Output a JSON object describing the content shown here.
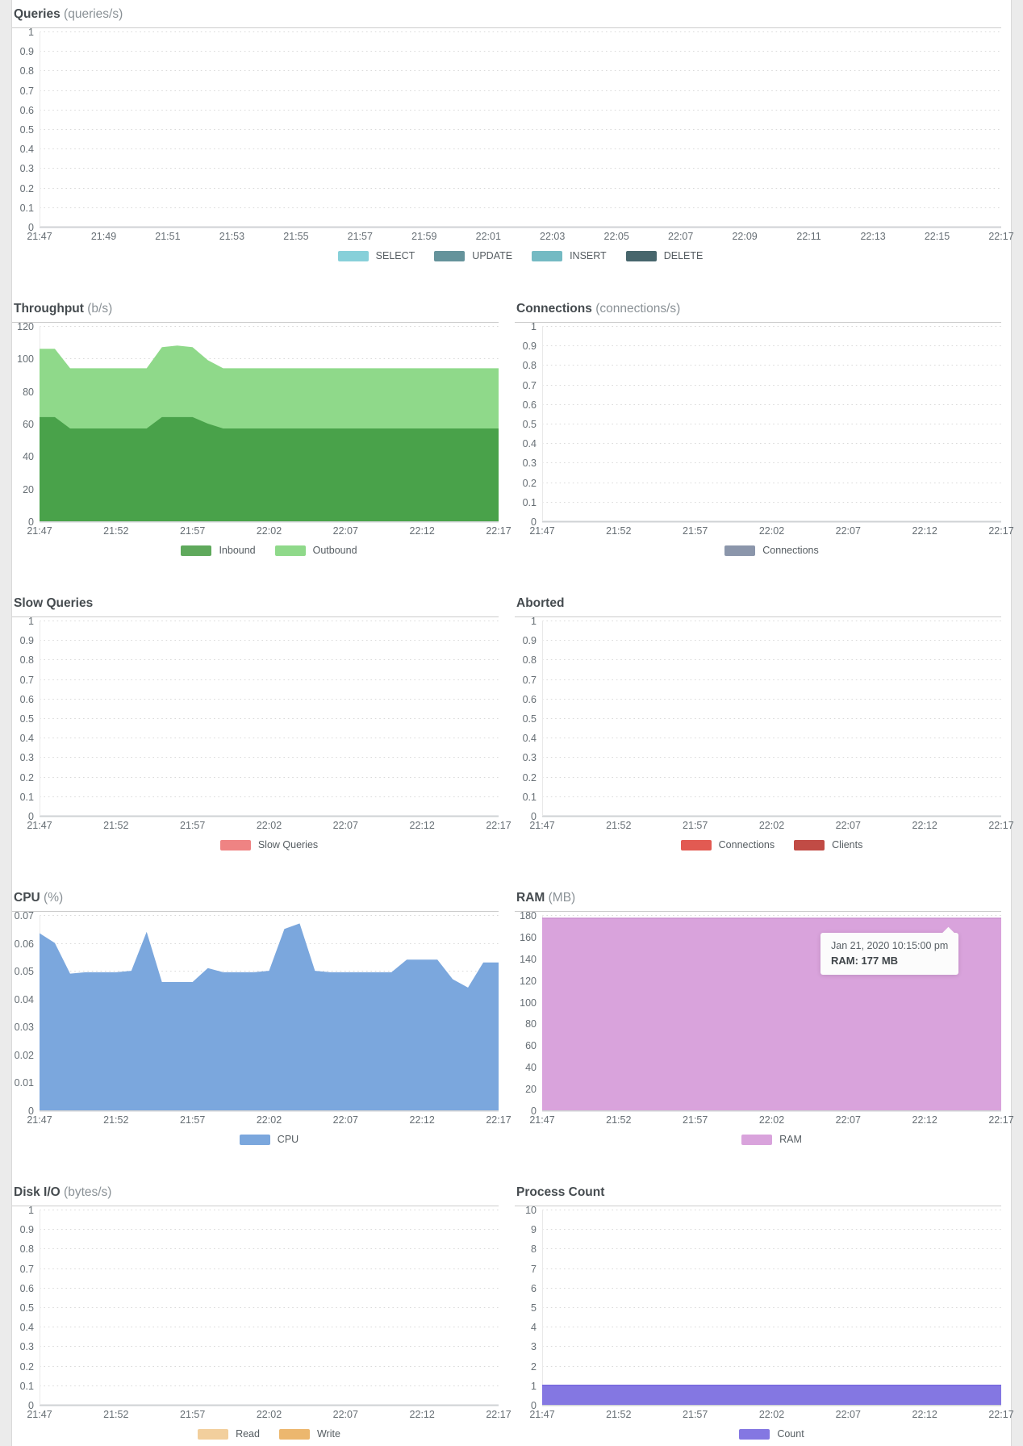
{
  "page": {
    "background": "#ebebeb",
    "panel_background": "#ffffff",
    "grid_line_color": "#dadada",
    "axis_line_color": "#cfd2d4",
    "label_color": "#666e74"
  },
  "chart_data": [
    {
      "id": "queries",
      "row": 1,
      "layout": "full",
      "type": "area",
      "title": "Queries",
      "subtitle": "(queries/s)",
      "ylim": [
        0,
        1
      ],
      "y_ticks": [
        "1",
        "0.9",
        "0.8",
        "0.7",
        "0.6",
        "0.5",
        "0.4",
        "0.3",
        "0.2",
        "0.1",
        "0"
      ],
      "x_ticks": [
        "21:47",
        "21:49",
        "21:51",
        "21:53",
        "21:55",
        "21:57",
        "21:59",
        "22:01",
        "22:03",
        "22:05",
        "22:07",
        "22:09",
        "22:11",
        "22:13",
        "22:15",
        "22:17"
      ],
      "grid": "dotted-horizontal",
      "series": [],
      "legend": [
        {
          "label": "SELECT",
          "color": "#87d0d9"
        },
        {
          "label": "UPDATE",
          "color": "#65939b"
        },
        {
          "label": "INSERT",
          "color": "#74bac3"
        },
        {
          "label": "DELETE",
          "color": "#47666c"
        }
      ]
    },
    {
      "id": "throughput",
      "row": 2,
      "layout": "half",
      "type": "area",
      "stacked": true,
      "title": "Throughput",
      "subtitle": "(b/s)",
      "ylim": [
        0,
        120
      ],
      "y_ticks": [
        "120",
        "100",
        "80",
        "60",
        "40",
        "20",
        "0"
      ],
      "x_ticks": [
        "21:47",
        "21:52",
        "21:57",
        "22:02",
        "22:07",
        "22:12",
        "22:17"
      ],
      "grid": "dotted-horizontal",
      "series": [
        {
          "name": "Inbound",
          "color": "#49a24a",
          "values": [
            64,
            64,
            57,
            57,
            57,
            57,
            57,
            57,
            64,
            64,
            64,
            60,
            57,
            57,
            57,
            57,
            57,
            57,
            57,
            57,
            57,
            57,
            57,
            57,
            57,
            57,
            57,
            57,
            57,
            57,
            57
          ]
        },
        {
          "name": "Outbound",
          "color": "#8fd98a",
          "values": [
            42,
            42,
            37,
            37,
            37,
            37,
            37,
            37,
            43,
            44,
            43,
            39,
            37,
            37,
            37,
            37,
            37,
            37,
            37,
            37,
            37,
            37,
            37,
            37,
            37,
            37,
            37,
            37,
            37,
            37,
            37
          ]
        }
      ],
      "legend": [
        {
          "label": "Inbound",
          "color": "#5fa95c"
        },
        {
          "label": "Outbound",
          "color": "#8fd98a"
        }
      ]
    },
    {
      "id": "connections",
      "row": 2,
      "layout": "half",
      "type": "area",
      "title": "Connections",
      "subtitle": "(connections/s)",
      "ylim": [
        0,
        1
      ],
      "y_ticks": [
        "1",
        "0.9",
        "0.8",
        "0.7",
        "0.6",
        "0.5",
        "0.4",
        "0.3",
        "0.2",
        "0.1",
        "0"
      ],
      "x_ticks": [
        "21:47",
        "21:52",
        "21:57",
        "22:02",
        "22:07",
        "22:12",
        "22:17"
      ],
      "grid": "dotted-horizontal",
      "series": [],
      "legend": [
        {
          "label": "Connections",
          "color": "#8b96ab"
        }
      ]
    },
    {
      "id": "slow_queries",
      "row": 3,
      "layout": "half",
      "type": "area",
      "title": "Slow Queries",
      "subtitle": "",
      "ylim": [
        0,
        1
      ],
      "y_ticks": [
        "1",
        "0.9",
        "0.8",
        "0.7",
        "0.6",
        "0.5",
        "0.4",
        "0.3",
        "0.2",
        "0.1",
        "0"
      ],
      "x_ticks": [
        "21:47",
        "21:52",
        "21:57",
        "22:02",
        "22:07",
        "22:12",
        "22:17"
      ],
      "grid": "dotted-horizontal",
      "series": [],
      "legend": [
        {
          "label": "Slow Queries",
          "color": "#ef8383"
        }
      ]
    },
    {
      "id": "aborted",
      "row": 3,
      "layout": "half",
      "type": "area",
      "title": "Aborted",
      "subtitle": "",
      "ylim": [
        0,
        1
      ],
      "y_ticks": [
        "1",
        "0.9",
        "0.8",
        "0.7",
        "0.6",
        "0.5",
        "0.4",
        "0.3",
        "0.2",
        "0.1",
        "0"
      ],
      "x_ticks": [
        "21:47",
        "21:52",
        "21:57",
        "22:02",
        "22:07",
        "22:12",
        "22:17"
      ],
      "grid": "dotted-horizontal",
      "series": [],
      "legend": [
        {
          "label": "Connections",
          "color": "#e25a52"
        },
        {
          "label": "Clients",
          "color": "#c14b45"
        }
      ]
    },
    {
      "id": "cpu",
      "row": 4,
      "layout": "half",
      "type": "area",
      "title": "CPU",
      "subtitle": "(%)",
      "ylim": [
        0,
        0.07
      ],
      "y_ticks": [
        "0.07",
        "0.06",
        "0.05",
        "0.04",
        "0.03",
        "0.02",
        "0.01",
        "0"
      ],
      "x_ticks": [
        "21:47",
        "21:52",
        "21:57",
        "22:02",
        "22:07",
        "22:12",
        "22:17"
      ],
      "grid": "dotted-horizontal",
      "series": [
        {
          "name": "CPU",
          "color": "#7ba7dd",
          "values": [
            0.0635,
            0.06,
            0.049,
            0.0495,
            0.0495,
            0.0495,
            0.05,
            0.064,
            0.046,
            0.046,
            0.046,
            0.051,
            0.0495,
            0.0495,
            0.0495,
            0.05,
            0.065,
            0.067,
            0.05,
            0.0495,
            0.0495,
            0.0495,
            0.0495,
            0.0495,
            0.054,
            0.054,
            0.054,
            0.047,
            0.044,
            0.053,
            0.053
          ]
        }
      ],
      "legend": [
        {
          "label": "CPU",
          "color": "#7ba7dd"
        }
      ]
    },
    {
      "id": "ram",
      "row": 4,
      "layout": "half",
      "type": "area",
      "title": "RAM",
      "subtitle": "(MB)",
      "ylim": [
        0,
        180
      ],
      "y_ticks": [
        "180",
        "160",
        "140",
        "120",
        "100",
        "80",
        "60",
        "40",
        "20",
        "0"
      ],
      "x_ticks": [
        "21:47",
        "21:52",
        "21:57",
        "22:02",
        "22:07",
        "22:12",
        "22:17"
      ],
      "grid": "dotted-horizontal",
      "series": [
        {
          "name": "RAM",
          "color": "#d9a3dc",
          "stroke": "#cb90d0",
          "values": [
            177,
            177,
            177,
            177,
            177,
            177,
            177,
            177,
            177,
            177,
            177,
            177,
            177,
            177,
            177,
            177,
            177,
            177,
            177,
            177,
            177,
            177,
            177,
            177,
            177,
            177,
            177,
            177,
            177,
            177,
            177
          ]
        }
      ],
      "legend": [
        {
          "label": "RAM",
          "color": "#d9a3dc"
        }
      ],
      "tooltip": {
        "line1": "Jan 21, 2020 10:15:00 pm",
        "line2": "RAM: 177 MB",
        "time": "22:15",
        "value": 177
      }
    },
    {
      "id": "disk_io",
      "row": 5,
      "layout": "half",
      "type": "area",
      "title": "Disk I/O",
      "subtitle": "(bytes/s)",
      "ylim": [
        0,
        1
      ],
      "y_ticks": [
        "1",
        "0.9",
        "0.8",
        "0.7",
        "0.6",
        "0.5",
        "0.4",
        "0.3",
        "0.2",
        "0.1",
        "0"
      ],
      "x_ticks": [
        "21:47",
        "21:52",
        "21:57",
        "22:02",
        "22:07",
        "22:12",
        "22:17"
      ],
      "grid": "dotted-horizontal",
      "series": [],
      "legend": [
        {
          "label": "Read",
          "color": "#f2cf9d"
        },
        {
          "label": "Write",
          "color": "#ecb76e"
        }
      ]
    },
    {
      "id": "process_count",
      "row": 5,
      "layout": "half",
      "type": "area",
      "title": "Process Count",
      "subtitle": "",
      "ylim": [
        0,
        10
      ],
      "y_ticks": [
        "10",
        "9",
        "8",
        "7",
        "6",
        "5",
        "4",
        "3",
        "2",
        "1",
        "0"
      ],
      "x_ticks": [
        "21:47",
        "21:52",
        "21:57",
        "22:02",
        "22:07",
        "22:12",
        "22:17"
      ],
      "grid": "dotted-horizontal",
      "series": [
        {
          "name": "Count",
          "color": "#8477e2",
          "stroke": "#7769df",
          "values": [
            1,
            1,
            1,
            1,
            1,
            1,
            1,
            1,
            1,
            1,
            1,
            1,
            1,
            1,
            1,
            1,
            1,
            1,
            1,
            1,
            1,
            1,
            1,
            1,
            1,
            1,
            1,
            1,
            1,
            1,
            1
          ]
        }
      ],
      "legend": [
        {
          "label": "Count",
          "color": "#8477e2"
        }
      ]
    }
  ]
}
